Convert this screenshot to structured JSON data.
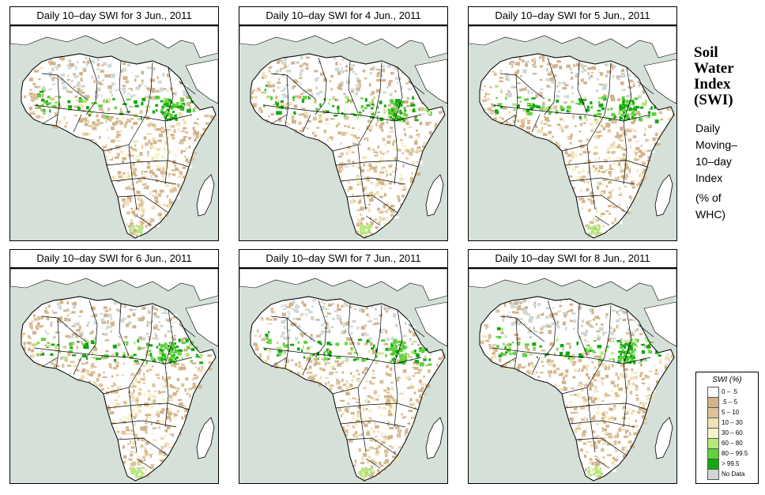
{
  "panels": [
    {
      "title": "Daily 10–day SWI for  3 Jun., 2011",
      "wet_level": 0.55,
      "seed": 11
    },
    {
      "title": "Daily 10–day SWI for  4 Jun., 2011",
      "wet_level": 0.62,
      "seed": 23
    },
    {
      "title": "Daily 10–day SWI for  5 Jun., 2011",
      "wet_level": 0.78,
      "seed": 37
    },
    {
      "title": "Daily 10–day SWI for  6 Jun., 2011",
      "wet_level": 0.72,
      "seed": 41
    },
    {
      "title": "Daily 10–day SWI for  7 Jun., 2011",
      "wet_level": 0.66,
      "seed": 53
    },
    {
      "title": "Daily 10–day SWI for  8 Jun., 2011",
      "wet_level": 0.6,
      "seed": 67
    }
  ],
  "sidebar": {
    "title_lines": [
      "Soil",
      "Water",
      "Index",
      "(SWI)"
    ],
    "subtitle_lines": [
      "Daily",
      "Moving–",
      "10–day",
      "Index"
    ],
    "units_lines": [
      "(% of",
      " WHC)"
    ]
  },
  "legend": {
    "title": "SWI (%)",
    "items": [
      {
        "label": "0 – .5",
        "color": "#ffffff"
      },
      {
        "label": ".5 – 5",
        "color": "#d2b48c"
      },
      {
        "label": "5 – 10",
        "color": "#ddc39a"
      },
      {
        "label": "10 – 30",
        "color": "#f0e2b8"
      },
      {
        "label": "30 – 60",
        "color": "#f7f3c8"
      },
      {
        "label": "60 – 80",
        "color": "#b5e87a"
      },
      {
        "label": "80 – 99.5",
        "color": "#5fd23c"
      },
      {
        "label": "> 99.5",
        "color": "#12a812"
      },
      {
        "label": "No Data",
        "color": "#cfd8d3"
      }
    ]
  },
  "colors": {
    "ocean": "#d4e0d8",
    "land_base": "#ffffff",
    "border": "#000000"
  }
}
